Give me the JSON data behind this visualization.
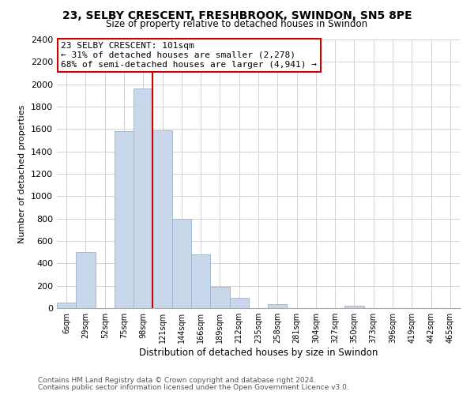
{
  "title1": "23, SELBY CRESCENT, FRESHBROOK, SWINDON, SN5 8PE",
  "title2": "Size of property relative to detached houses in Swindon",
  "xlabel": "Distribution of detached houses by size in Swindon",
  "ylabel": "Number of detached properties",
  "bar_color": "#c8d8ea",
  "bar_edge_color": "#a0bcd0",
  "bins": [
    "6sqm",
    "29sqm",
    "52sqm",
    "75sqm",
    "98sqm",
    "121sqm",
    "144sqm",
    "166sqm",
    "189sqm",
    "212sqm",
    "235sqm",
    "258sqm",
    "281sqm",
    "304sqm",
    "327sqm",
    "350sqm",
    "373sqm",
    "396sqm",
    "419sqm",
    "442sqm",
    "465sqm"
  ],
  "heights": [
    50,
    500,
    0,
    1580,
    1960,
    1590,
    800,
    480,
    190,
    90,
    0,
    35,
    0,
    0,
    0,
    20,
    0,
    0,
    0,
    0,
    0
  ],
  "ylim": [
    0,
    2400
  ],
  "yticks": [
    0,
    200,
    400,
    600,
    800,
    1000,
    1200,
    1400,
    1600,
    1800,
    2000,
    2200,
    2400
  ],
  "vline_color": "#cc0000",
  "annotation_title": "23 SELBY CRESCENT: 101sqm",
  "annotation_line1": "← 31% of detached houses are smaller (2,278)",
  "annotation_line2": "68% of semi-detached houses are larger (4,941) →",
  "annotation_box_color": "#ffffff",
  "annotation_box_edge": "#cc0000",
  "footer1": "Contains HM Land Registry data © Crown copyright and database right 2024.",
  "footer2": "Contains public sector information licensed under the Open Government Licence v3.0.",
  "background_color": "#ffffff",
  "grid_color": "#cccccc"
}
